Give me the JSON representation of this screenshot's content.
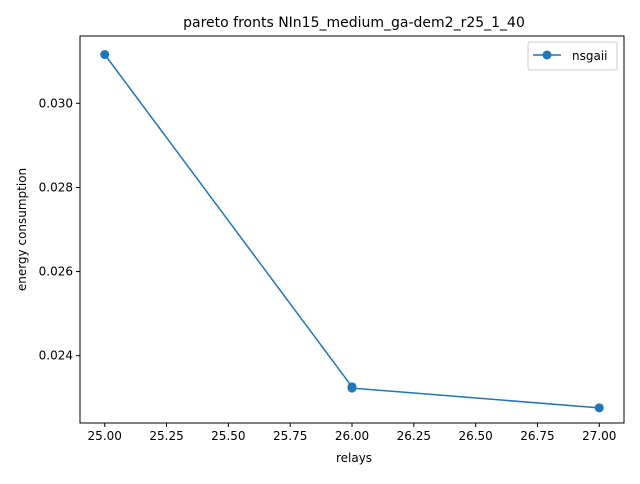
{
  "chart_data": {
    "type": "line",
    "title": "pareto fronts NIn15_medium_ga-dem2_r25_1_40",
    "xlabel": "relays",
    "ylabel": "energy consumption",
    "xlim": [
      24.9,
      27.1
    ],
    "ylim": [
      0.0224,
      0.0316
    ],
    "x_ticks": [
      "25.00",
      "25.25",
      "25.50",
      "25.75",
      "26.00",
      "26.25",
      "26.50",
      "26.75",
      "27.00"
    ],
    "y_ticks": [
      "0.024",
      "0.026",
      "0.028",
      "0.030"
    ],
    "grid": false,
    "legend_position": "top-right",
    "series": [
      {
        "name": "nsgaii",
        "color": "#1f77b4",
        "marker": "circle",
        "x": [
          25,
          26,
          26,
          27
        ],
        "y": [
          0.03116,
          0.02326,
          0.02323,
          0.02276
        ]
      }
    ]
  }
}
